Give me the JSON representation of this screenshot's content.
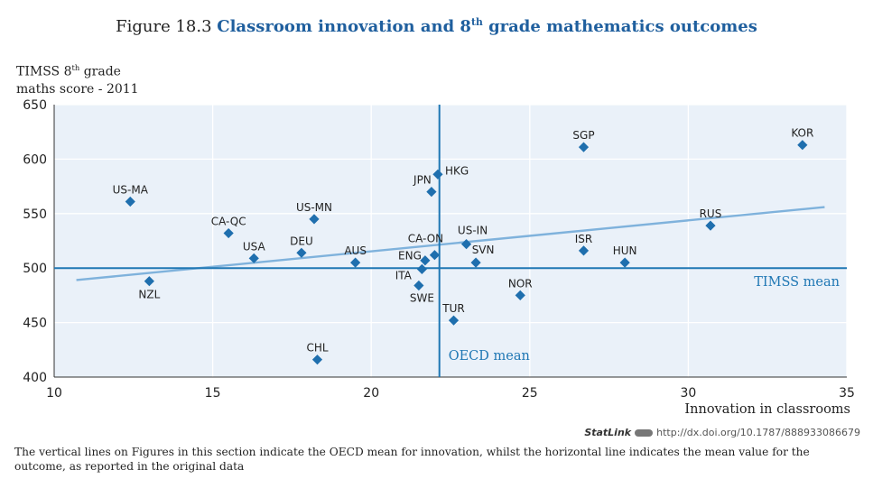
{
  "figure": {
    "number": "Figure 18.3",
    "title_pre": "Classroom innovation and 8",
    "title_sup": "th",
    "title_post": " grade mathematics outcomes"
  },
  "chart_data": {
    "type": "scatter",
    "ylabel_line1_pre": "TIMSS 8",
    "ylabel_line1_sup": "th",
    "ylabel_line1_post": " grade",
    "ylabel_line2": "maths score - 2011",
    "xlabel": "Innovation in classrooms",
    "xlim": [
      10,
      35
    ],
    "ylim": [
      400,
      650
    ],
    "xticks": [
      10,
      15,
      20,
      25,
      30,
      35
    ],
    "yticks": [
      400,
      450,
      500,
      550,
      600,
      650
    ],
    "grid": true,
    "points": [
      {
        "label": "US-MA",
        "x": 12.4,
        "y": 561
      },
      {
        "label": "NZL",
        "x": 13.0,
        "y": 488
      },
      {
        "label": "CA-QC",
        "x": 15.5,
        "y": 532
      },
      {
        "label": "USA",
        "x": 16.3,
        "y": 509
      },
      {
        "label": "DEU",
        "x": 17.8,
        "y": 514
      },
      {
        "label": "US-MN",
        "x": 18.2,
        "y": 545
      },
      {
        "label": "CHL",
        "x": 18.3,
        "y": 416
      },
      {
        "label": "AUS",
        "x": 19.5,
        "y": 505
      },
      {
        "label": "ITA",
        "x": 21.5,
        "y": 484
      },
      {
        "label": "SWE",
        "x": 21.6,
        "y": 499
      },
      {
        "label": "ENG",
        "x": 21.7,
        "y": 507
      },
      {
        "label": "CA-ON",
        "x": 22.0,
        "y": 512
      },
      {
        "label": "JPN",
        "x": 21.9,
        "y": 570
      },
      {
        "label": "HKG",
        "x": 22.1,
        "y": 586
      },
      {
        "label": "TUR",
        "x": 22.6,
        "y": 452
      },
      {
        "label": "US-IN",
        "x": 23.0,
        "y": 522
      },
      {
        "label": "SVN",
        "x": 23.3,
        "y": 505
      },
      {
        "label": "NOR",
        "x": 24.7,
        "y": 475
      },
      {
        "label": "ISR",
        "x": 26.7,
        "y": 516
      },
      {
        "label": "SGP",
        "x": 26.7,
        "y": 611
      },
      {
        "label": "HUN",
        "x": 28.0,
        "y": 505
      },
      {
        "label": "RUS",
        "x": 30.7,
        "y": 539
      },
      {
        "label": "KOR",
        "x": 33.6,
        "y": 613
      }
    ],
    "trendline": {
      "x": [
        10.7,
        34.3
      ],
      "y": [
        489,
        556
      ]
    },
    "oecd_mean_x": 22.15,
    "timss_mean_y": 500,
    "oecd_mean_label": "OECD mean",
    "timss_mean_label": "TIMSS mean",
    "colors": {
      "marker": "#1f6fae",
      "mean_line": "#1f77b4",
      "trend": "#7fb2dc",
      "plot_bg": "#eaf1f9",
      "grid": "#ffffff"
    }
  },
  "statlink": {
    "brand": "StatLink",
    "url": "http://dx.doi.org/10.1787/888933086679"
  },
  "note": "The vertical lines on Figures in this section indicate the OECD mean for innovation, whilst the horizontal line indicates the mean value for the outcome, as reported in the original data"
}
